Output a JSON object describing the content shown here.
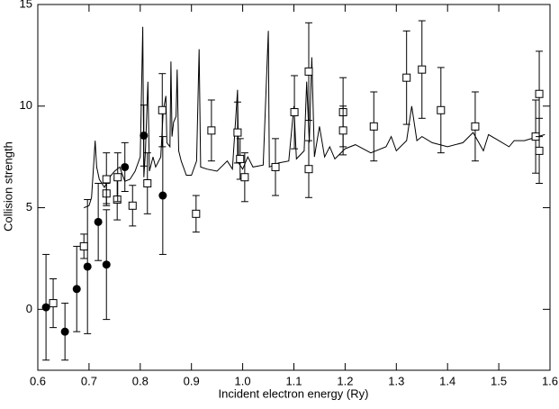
{
  "chart_data": {
    "type": "scatter",
    "xlabel": "Incident electron energy (Ry)",
    "ylabel": "Collision strength",
    "xlim": [
      0.6,
      1.6
    ],
    "ylim": [
      -3,
      15
    ],
    "xticks": [
      0.6,
      0.7,
      0.8,
      0.9,
      {
        "value": 1,
        "label": "1.0"
      },
      1.1,
      1.2,
      1.3,
      1.4,
      1.5,
      1.6
    ],
    "yticks": [
      0,
      5,
      10,
      15
    ],
    "series": [
      {
        "kind": "line",
        "color": "#000000",
        "x": [
          0.69,
          0.7,
          0.705,
          0.71,
          0.712,
          0.715,
          0.72,
          0.73,
          0.74,
          0.75,
          0.76,
          0.77,
          0.78,
          0.79,
          0.8,
          0.805,
          0.807,
          0.81,
          0.815,
          0.818,
          0.825,
          0.83,
          0.84,
          0.845,
          0.85,
          0.852,
          0.858,
          0.86,
          0.862,
          0.865,
          0.87,
          0.872,
          0.875,
          0.88,
          0.89,
          0.9,
          0.91,
          0.915,
          0.918,
          0.93,
          0.95,
          0.97,
          0.98,
          0.99,
          0.992,
          1.0,
          1.01,
          1.02,
          1.04,
          1.05,
          1.052,
          1.07,
          1.09,
          1.1,
          1.105,
          1.12,
          1.125,
          1.13,
          1.135,
          1.14,
          1.15,
          1.16,
          1.17,
          1.18,
          1.2,
          1.22,
          1.25,
          1.28,
          1.29,
          1.3,
          1.32,
          1.33,
          1.34,
          1.35,
          1.37,
          1.4,
          1.43,
          1.45,
          1.47,
          1.48,
          1.5,
          1.52,
          1.53,
          1.55,
          1.59
        ],
        "values": [
          5.0,
          5.1,
          5.5,
          7.5,
          8.3,
          7.0,
          6.4,
          6.0,
          6.5,
          6.8,
          7.0,
          6.3,
          6.4,
          6.8,
          7.5,
          13.9,
          6.5,
          7.7,
          11.2,
          6.8,
          7.5,
          7.0,
          7.5,
          9.8,
          10.5,
          8.2,
          8.0,
          12.2,
          8.5,
          9.2,
          9.5,
          11.8,
          7.8,
          7.3,
          6.6,
          6.6,
          7.3,
          12.8,
          7.0,
          6.9,
          6.8,
          7.3,
          6.9,
          10.8,
          7.2,
          6.9,
          7.5,
          7.0,
          7.1,
          13.7,
          7.0,
          7.2,
          7.3,
          10.0,
          7.4,
          7.8,
          11.2,
          8.2,
          12.4,
          7.5,
          9.0,
          7.5,
          8.0,
          7.4,
          7.9,
          8.1,
          7.7,
          8.0,
          8.5,
          7.8,
          8.3,
          10.0,
          8.3,
          8.5,
          8.2,
          8.0,
          8.2,
          8.7,
          7.8,
          8.6,
          8.3,
          8.0,
          8.3,
          8.3,
          8.6
        ]
      },
      {
        "kind": "filled-circle",
        "color": "#000000",
        "x": [
          0.616,
          0.653,
          0.676,
          0.697,
          0.718,
          0.734,
          0.77,
          0.807,
          0.844
        ],
        "values": [
          0.1,
          -1.1,
          1.0,
          2.1,
          4.3,
          2.2,
          7.0,
          8.55,
          5.6
        ],
        "errors": [
          2.6,
          1.4,
          2.1,
          3.3,
          1.9,
          2.7,
          1.2,
          1.5,
          2.9
        ]
      },
      {
        "kind": "open-square",
        "color": "#000000",
        "x": [
          0.63,
          0.69,
          0.734,
          0.734,
          0.755,
          0.756,
          0.785,
          0.814,
          0.843,
          0.909,
          0.939,
          0.99,
          0.995,
          1.004,
          1.064,
          1.101,
          1.129,
          1.129,
          1.196,
          1.196,
          1.256,
          1.32,
          1.35,
          1.387,
          1.454,
          1.572,
          1.579,
          1.579
        ],
        "values": [
          0.3,
          3.1,
          5.7,
          6.4,
          5.4,
          6.5,
          5.1,
          6.2,
          9.8,
          4.7,
          8.8,
          8.7,
          7.4,
          6.5,
          7.0,
          9.7,
          11.7,
          6.9,
          9.7,
          8.8,
          9.0,
          11.4,
          11.8,
          9.8,
          9.0,
          8.5,
          10.6,
          7.8
        ],
        "errors": [
          1.2,
          0.6,
          0.5,
          1.3,
          1.0,
          1.2,
          1.0,
          1.5,
          1.8,
          0.9,
          1.5,
          1.5,
          1.0,
          1.2,
          1.4,
          1.8,
          2.4,
          1.4,
          1.7,
          1.2,
          1.7,
          2.3,
          2.4,
          2.1,
          1.7,
          1.8,
          2.1,
          1.6
        ]
      }
    ]
  }
}
